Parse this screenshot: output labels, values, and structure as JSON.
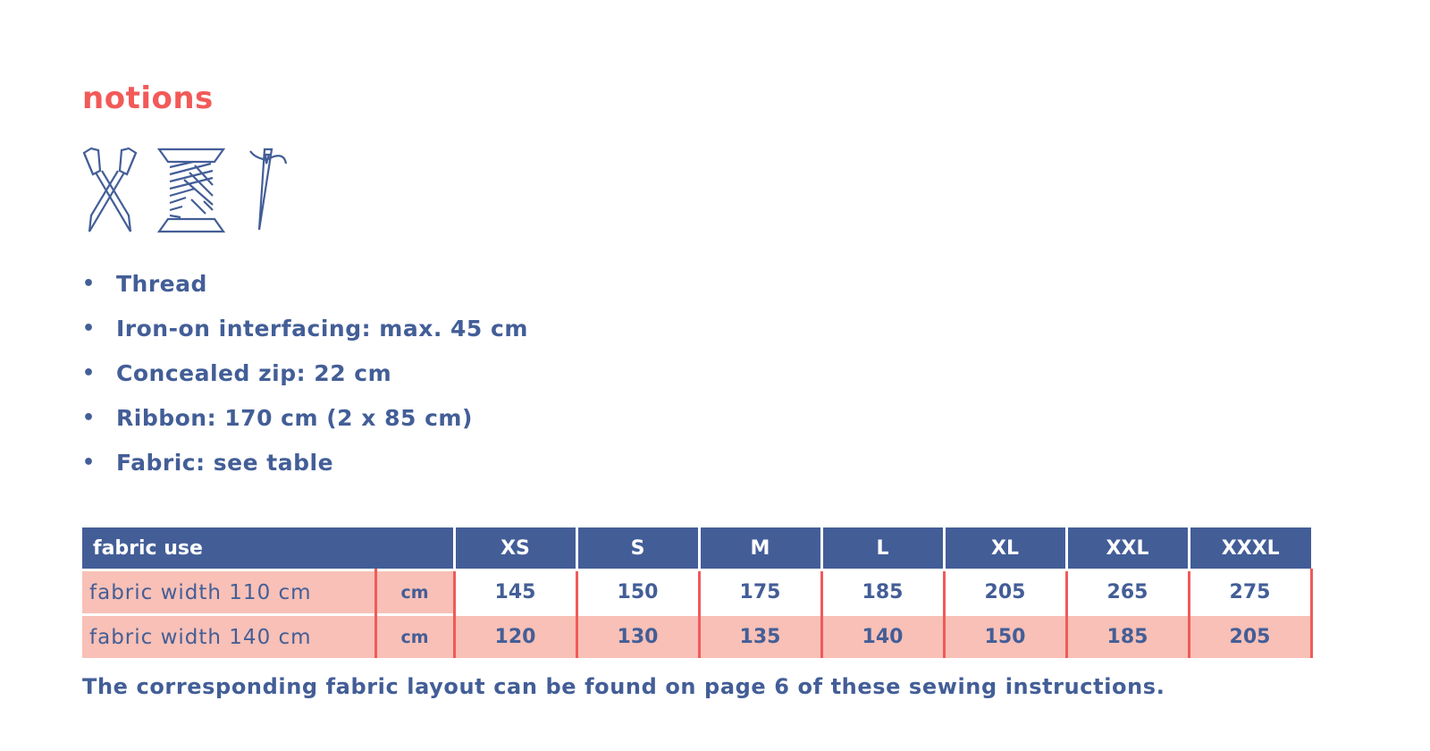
{
  "heading": "notions",
  "icons": [
    "scissors-icon",
    "thread-spool-icon",
    "needle-icon"
  ],
  "items": [
    "Thread",
    "Iron-on interfacing: max. 45 cm",
    "Concealed zip: 22 cm",
    "Ribbon: 170 cm (2 x 85 cm)",
    "Fabric: see table"
  ],
  "bullet": "•",
  "table": {
    "header": "fabric use",
    "sizes": [
      "XS",
      "S",
      "M",
      "L",
      "XL",
      "XXL",
      "XXXL"
    ],
    "rows": [
      {
        "label": "fabric width 110 cm",
        "unit": "cm",
        "values": [
          "145",
          "150",
          "175",
          "185",
          "205",
          "265",
          "275"
        ]
      },
      {
        "label": "fabric width 140 cm",
        "unit": "cm",
        "values": [
          "120",
          "130",
          "135",
          "140",
          "150",
          "185",
          "205"
        ]
      }
    ]
  },
  "note": "The corresponding fabric layout can be found on page 6 of these sewing instructions.",
  "colors": {
    "accent": "#f25a58",
    "text": "#435e97",
    "row_fill": "#f8c0b6",
    "divider": "#f05a5a"
  }
}
